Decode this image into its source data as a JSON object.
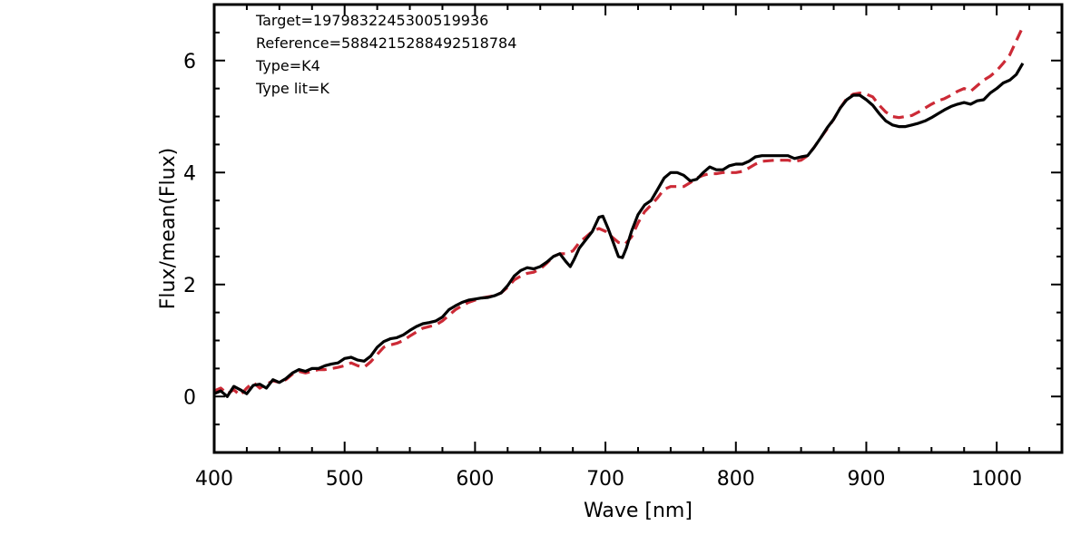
{
  "chart_data": {
    "type": "line",
    "xlabel": "Wave [nm]",
    "ylabel": "Flux/mean(Flux)",
    "xlim": [
      400,
      1050
    ],
    "ylim": [
      -1,
      7
    ],
    "x_ticks": [
      400,
      500,
      600,
      700,
      800,
      900,
      1000
    ],
    "y_ticks": [
      0,
      2,
      4,
      6
    ],
    "annotations": [
      "Target=1979832245300519936",
      "Reference=5884215288492518784",
      "Type=K4",
      "Type lit=K"
    ],
    "series": [
      {
        "style": "solid",
        "color": "#000000",
        "points": [
          [
            400,
            0.05
          ],
          [
            405,
            0.1
          ],
          [
            410,
            0.0
          ],
          [
            415,
            0.18
          ],
          [
            420,
            0.12
          ],
          [
            425,
            0.05
          ],
          [
            430,
            0.2
          ],
          [
            435,
            0.22
          ],
          [
            440,
            0.15
          ],
          [
            445,
            0.3
          ],
          [
            450,
            0.25
          ],
          [
            455,
            0.32
          ],
          [
            460,
            0.42
          ],
          [
            465,
            0.48
          ],
          [
            470,
            0.45
          ],
          [
            475,
            0.5
          ],
          [
            480,
            0.5
          ],
          [
            485,
            0.55
          ],
          [
            490,
            0.58
          ],
          [
            495,
            0.6
          ],
          [
            500,
            0.68
          ],
          [
            505,
            0.7
          ],
          [
            510,
            0.65
          ],
          [
            515,
            0.63
          ],
          [
            520,
            0.72
          ],
          [
            525,
            0.88
          ],
          [
            530,
            0.98
          ],
          [
            535,
            1.03
          ],
          [
            540,
            1.05
          ],
          [
            545,
            1.1
          ],
          [
            550,
            1.18
          ],
          [
            555,
            1.25
          ],
          [
            560,
            1.3
          ],
          [
            565,
            1.32
          ],
          [
            570,
            1.35
          ],
          [
            575,
            1.42
          ],
          [
            580,
            1.55
          ],
          [
            585,
            1.62
          ],
          [
            590,
            1.68
          ],
          [
            595,
            1.72
          ],
          [
            600,
            1.74
          ],
          [
            605,
            1.76
          ],
          [
            610,
            1.77
          ],
          [
            615,
            1.8
          ],
          [
            620,
            1.85
          ],
          [
            625,
            1.98
          ],
          [
            630,
            2.15
          ],
          [
            635,
            2.25
          ],
          [
            640,
            2.3
          ],
          [
            645,
            2.28
          ],
          [
            650,
            2.32
          ],
          [
            655,
            2.4
          ],
          [
            660,
            2.5
          ],
          [
            665,
            2.55
          ],
          [
            670,
            2.4
          ],
          [
            673,
            2.32
          ],
          [
            676,
            2.45
          ],
          [
            680,
            2.65
          ],
          [
            685,
            2.8
          ],
          [
            690,
            2.95
          ],
          [
            695,
            3.2
          ],
          [
            698,
            3.22
          ],
          [
            702,
            3.0
          ],
          [
            706,
            2.75
          ],
          [
            710,
            2.5
          ],
          [
            713,
            2.48
          ],
          [
            716,
            2.65
          ],
          [
            720,
            2.95
          ],
          [
            725,
            3.25
          ],
          [
            730,
            3.42
          ],
          [
            735,
            3.5
          ],
          [
            740,
            3.7
          ],
          [
            745,
            3.9
          ],
          [
            750,
            4.0
          ],
          [
            755,
            4.0
          ],
          [
            760,
            3.95
          ],
          [
            765,
            3.85
          ],
          [
            770,
            3.88
          ],
          [
            775,
            4.0
          ],
          [
            780,
            4.1
          ],
          [
            785,
            4.05
          ],
          [
            790,
            4.05
          ],
          [
            795,
            4.12
          ],
          [
            800,
            4.15
          ],
          [
            805,
            4.15
          ],
          [
            810,
            4.2
          ],
          [
            815,
            4.28
          ],
          [
            820,
            4.3
          ],
          [
            830,
            4.3
          ],
          [
            840,
            4.3
          ],
          [
            845,
            4.25
          ],
          [
            850,
            4.28
          ],
          [
            855,
            4.3
          ],
          [
            860,
            4.45
          ],
          [
            865,
            4.62
          ],
          [
            870,
            4.8
          ],
          [
            875,
            4.95
          ],
          [
            880,
            5.15
          ],
          [
            885,
            5.3
          ],
          [
            890,
            5.38
          ],
          [
            895,
            5.38
          ],
          [
            900,
            5.3
          ],
          [
            905,
            5.2
          ],
          [
            910,
            5.05
          ],
          [
            915,
            4.92
          ],
          [
            920,
            4.85
          ],
          [
            925,
            4.82
          ],
          [
            930,
            4.82
          ],
          [
            935,
            4.85
          ],
          [
            940,
            4.88
          ],
          [
            945,
            4.92
          ],
          [
            950,
            4.98
          ],
          [
            955,
            5.05
          ],
          [
            960,
            5.12
          ],
          [
            965,
            5.18
          ],
          [
            970,
            5.22
          ],
          [
            975,
            5.25
          ],
          [
            980,
            5.22
          ],
          [
            985,
            5.28
          ],
          [
            990,
            5.3
          ],
          [
            995,
            5.42
          ],
          [
            1000,
            5.5
          ],
          [
            1005,
            5.6
          ],
          [
            1010,
            5.65
          ],
          [
            1015,
            5.75
          ],
          [
            1020,
            5.95
          ]
        ]
      },
      {
        "style": "dashed",
        "color": "#cc2a36",
        "points": [
          [
            400,
            0.1
          ],
          [
            405,
            0.15
          ],
          [
            410,
            0.05
          ],
          [
            415,
            0.12
          ],
          [
            420,
            0.02
          ],
          [
            425,
            0.15
          ],
          [
            430,
            0.25
          ],
          [
            435,
            0.15
          ],
          [
            440,
            0.22
          ],
          [
            445,
            0.28
          ],
          [
            450,
            0.25
          ],
          [
            455,
            0.3
          ],
          [
            460,
            0.4
          ],
          [
            465,
            0.45
          ],
          [
            470,
            0.42
          ],
          [
            475,
            0.45
          ],
          [
            480,
            0.48
          ],
          [
            485,
            0.48
          ],
          [
            490,
            0.5
          ],
          [
            495,
            0.52
          ],
          [
            500,
            0.55
          ],
          [
            505,
            0.6
          ],
          [
            510,
            0.55
          ],
          [
            515,
            0.52
          ],
          [
            520,
            0.62
          ],
          [
            525,
            0.75
          ],
          [
            530,
            0.88
          ],
          [
            535,
            0.92
          ],
          [
            540,
            0.95
          ],
          [
            545,
            1.0
          ],
          [
            550,
            1.08
          ],
          [
            555,
            1.15
          ],
          [
            560,
            1.22
          ],
          [
            565,
            1.25
          ],
          [
            570,
            1.28
          ],
          [
            575,
            1.35
          ],
          [
            580,
            1.45
          ],
          [
            585,
            1.55
          ],
          [
            590,
            1.62
          ],
          [
            595,
            1.68
          ],
          [
            600,
            1.72
          ],
          [
            605,
            1.76
          ],
          [
            610,
            1.78
          ],
          [
            615,
            1.8
          ],
          [
            620,
            1.85
          ],
          [
            625,
            1.95
          ],
          [
            630,
            2.08
          ],
          [
            635,
            2.15
          ],
          [
            640,
            2.2
          ],
          [
            645,
            2.22
          ],
          [
            650,
            2.28
          ],
          [
            655,
            2.38
          ],
          [
            660,
            2.5
          ],
          [
            665,
            2.55
          ],
          [
            670,
            2.55
          ],
          [
            675,
            2.6
          ],
          [
            680,
            2.75
          ],
          [
            685,
            2.85
          ],
          [
            690,
            2.95
          ],
          [
            695,
            3.0
          ],
          [
            700,
            2.95
          ],
          [
            705,
            2.85
          ],
          [
            710,
            2.75
          ],
          [
            715,
            2.72
          ],
          [
            720,
            2.85
          ],
          [
            725,
            3.1
          ],
          [
            730,
            3.3
          ],
          [
            735,
            3.42
          ],
          [
            740,
            3.55
          ],
          [
            745,
            3.7
          ],
          [
            750,
            3.75
          ],
          [
            755,
            3.75
          ],
          [
            760,
            3.75
          ],
          [
            765,
            3.82
          ],
          [
            770,
            3.9
          ],
          [
            775,
            3.95
          ],
          [
            780,
            3.98
          ],
          [
            785,
            3.98
          ],
          [
            790,
            4.0
          ],
          [
            795,
            4.0
          ],
          [
            800,
            4.0
          ],
          [
            805,
            4.02
          ],
          [
            810,
            4.08
          ],
          [
            815,
            4.15
          ],
          [
            820,
            4.2
          ],
          [
            830,
            4.22
          ],
          [
            840,
            4.22
          ],
          [
            845,
            4.2
          ],
          [
            850,
            4.22
          ],
          [
            855,
            4.3
          ],
          [
            860,
            4.45
          ],
          [
            865,
            4.62
          ],
          [
            870,
            4.78
          ],
          [
            875,
            4.95
          ],
          [
            880,
            5.15
          ],
          [
            885,
            5.32
          ],
          [
            890,
            5.4
          ],
          [
            895,
            5.42
          ],
          [
            900,
            5.4
          ],
          [
            905,
            5.35
          ],
          [
            910,
            5.2
          ],
          [
            915,
            5.08
          ],
          [
            920,
            5.0
          ],
          [
            925,
            4.98
          ],
          [
            930,
            5.0
          ],
          [
            935,
            5.02
          ],
          [
            940,
            5.08
          ],
          [
            945,
            5.15
          ],
          [
            950,
            5.22
          ],
          [
            955,
            5.28
          ],
          [
            960,
            5.32
          ],
          [
            965,
            5.38
          ],
          [
            970,
            5.45
          ],
          [
            975,
            5.5
          ],
          [
            980,
            5.45
          ],
          [
            985,
            5.55
          ],
          [
            990,
            5.65
          ],
          [
            995,
            5.72
          ],
          [
            1000,
            5.82
          ],
          [
            1005,
            5.95
          ],
          [
            1010,
            6.1
          ],
          [
            1015,
            6.35
          ],
          [
            1020,
            6.6
          ]
        ]
      }
    ]
  }
}
